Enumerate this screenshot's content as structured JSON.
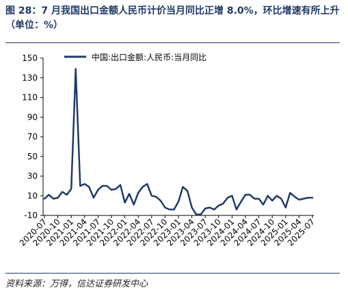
{
  "title": "图 28：7 月我国出口金额人民币计价当月同比正增 8.0%，环比增速有所上升（单位：%）",
  "source": "资料来源：万得，信达证券研发中心",
  "colors": {
    "line": "#1f3a68",
    "rule": "#1f3a68"
  },
  "chart_data": {
    "type": "line",
    "title": "",
    "xlabel": "",
    "ylabel": "",
    "ylim": [
      -10,
      150
    ],
    "yticks": [
      -10,
      10,
      30,
      50,
      70,
      90,
      110,
      130,
      150
    ],
    "xticks": [
      "2020-07",
      "2020-10",
      "2021-01",
      "2021-04",
      "2021-07",
      "2021-10",
      "2022-01",
      "2022-04",
      "2022-07",
      "2022-10",
      "2023-01",
      "2023-04",
      "2023-07",
      "2023-10",
      "2024-01",
      "2024-04",
      "2024-07",
      "2024-10",
      "2025-01",
      "2025-04",
      "2025-07"
    ],
    "legend": "top-left",
    "grid": false,
    "series": [
      {
        "name": "中国:出口金额:人民币:当月同比",
        "x": [
          "2020-07",
          "2020-08",
          "2020-09",
          "2020-10",
          "2020-11",
          "2020-12",
          "2021-01",
          "2021-02",
          "2021-03",
          "2021-04",
          "2021-05",
          "2021-06",
          "2021-07",
          "2021-08",
          "2021-09",
          "2021-10",
          "2021-11",
          "2021-12",
          "2022-01",
          "2022-02",
          "2022-03",
          "2022-04",
          "2022-05",
          "2022-06",
          "2022-07",
          "2022-08",
          "2022-09",
          "2022-10",
          "2022-11",
          "2022-12",
          "2023-01",
          "2023-02",
          "2023-03",
          "2023-04",
          "2023-05",
          "2023-06",
          "2023-07",
          "2023-08",
          "2023-09",
          "2023-10",
          "2023-11",
          "2023-12",
          "2024-01",
          "2024-02",
          "2024-03",
          "2024-04",
          "2024-05",
          "2024-06",
          "2024-07",
          "2024-08",
          "2024-09",
          "2024-10",
          "2024-11",
          "2024-12",
          "2025-01",
          "2025-02",
          "2025-03",
          "2025-04",
          "2025-05",
          "2025-06",
          "2025-07"
        ],
        "values": [
          7,
          11,
          7,
          8,
          14,
          11,
          17,
          139,
          20,
          22,
          19,
          8,
          16,
          20,
          20,
          16,
          17,
          21,
          3,
          12,
          1,
          13,
          19,
          22,
          10,
          9,
          5,
          -2,
          -4,
          -4,
          4,
          19,
          15,
          -2,
          -9,
          -9,
          -3,
          -2,
          -4,
          0,
          2,
          8,
          10,
          -4,
          4,
          11,
          11,
          7,
          7,
          1,
          10,
          5,
          10,
          7,
          -2,
          13,
          9,
          6,
          7,
          8,
          8
        ]
      }
    ]
  }
}
